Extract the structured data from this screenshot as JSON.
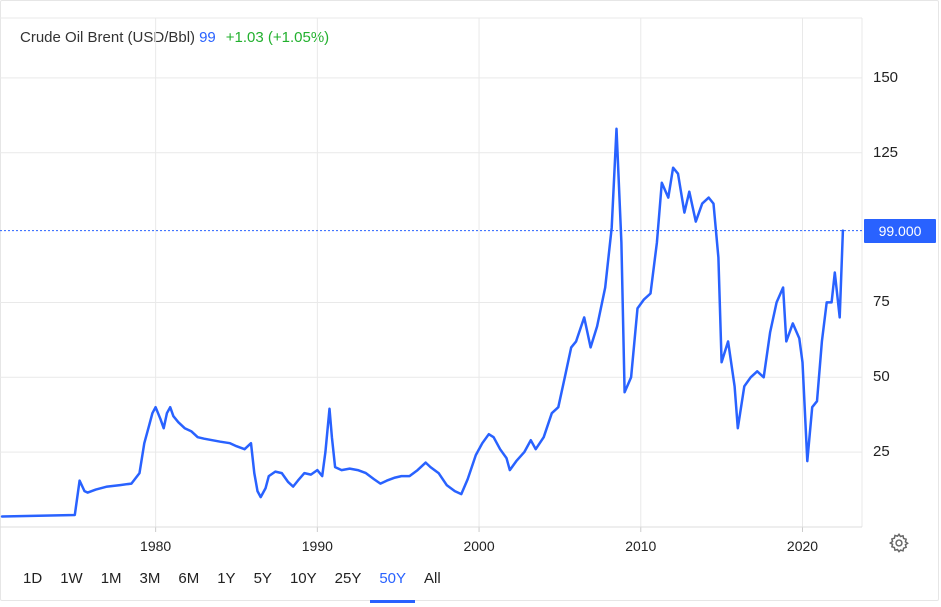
{
  "header": {
    "instrument": "Crude Oil Brent (USD/Bbl)",
    "price": "99",
    "change": "+1.03 (+1.05%)"
  },
  "current_value_label": "99.000",
  "colors": {
    "line": "#2962ff",
    "positive": "#22b02e",
    "grid": "#e9e9e9",
    "text": "#222222"
  },
  "icons": {
    "settings": "gear-icon"
  },
  "ranges": [
    {
      "label": "1D"
    },
    {
      "label": "1W"
    },
    {
      "label": "1M"
    },
    {
      "label": "3M"
    },
    {
      "label": "6M"
    },
    {
      "label": "1Y"
    },
    {
      "label": "5Y"
    },
    {
      "label": "10Y"
    },
    {
      "label": "25Y"
    },
    {
      "label": "50Y"
    },
    {
      "label": "All"
    }
  ],
  "active_range": "50Y",
  "chart_data": {
    "type": "line",
    "title": "Crude Oil Brent (USD/Bbl)",
    "xlabel": "",
    "ylabel": "",
    "x_ticks": [
      "1980",
      "1990",
      "2000",
      "2010",
      "2020"
    ],
    "y_ticks": [
      25,
      50,
      75,
      125,
      150
    ],
    "ylim": [
      0,
      170
    ],
    "xlim": [
      1970.5,
      2023.0
    ],
    "grid": true,
    "legend": "none",
    "current_value": 99.0,
    "series": [
      {
        "name": "",
        "x": [
          1970.5,
          1975.0,
          1975.3,
          1975.6,
          1975.8,
          1976.3,
          1977.0,
          1977.8,
          1978.5,
          1979.0,
          1979.3,
          1979.6,
          1979.8,
          1980.0,
          1980.3,
          1980.5,
          1980.7,
          1980.9,
          1981.1,
          1981.4,
          1981.8,
          1982.2,
          1982.6,
          1983.0,
          1983.5,
          1984.0,
          1984.6,
          1985.0,
          1985.5,
          1985.9,
          1986.1,
          1986.3,
          1986.5,
          1986.8,
          1987.0,
          1987.4,
          1987.8,
          1988.2,
          1988.5,
          1988.8,
          1989.2,
          1989.6,
          1990.0,
          1990.3,
          1990.5,
          1990.75,
          1990.9,
          1991.1,
          1991.5,
          1992.0,
          1992.5,
          1993.0,
          1993.5,
          1993.9,
          1994.3,
          1994.8,
          1995.2,
          1995.7,
          1996.2,
          1996.7,
          1997.0,
          1997.5,
          1998.0,
          1998.5,
          1998.9,
          1999.3,
          1999.8,
          2000.2,
          2000.6,
          2000.9,
          2001.3,
          2001.7,
          2001.9,
          2002.3,
          2002.8,
          2003.2,
          2003.5,
          2004.0,
          2004.5,
          2004.9,
          2005.3,
          2005.7,
          2006.0,
          2006.5,
          2006.9,
          2007.3,
          2007.8,
          2008.2,
          2008.5,
          2008.8,
          2009.0,
          2009.4,
          2009.8,
          2010.2,
          2010.6,
          2011.0,
          2011.3,
          2011.7,
          2012.0,
          2012.3,
          2012.7,
          2013.0,
          2013.4,
          2013.8,
          2014.2,
          2014.5,
          2014.8,
          2015.0,
          2015.4,
          2015.8,
          2016.0,
          2016.4,
          2016.8,
          2017.2,
          2017.6,
          2018.0,
          2018.4,
          2018.8,
          2019.0,
          2019.4,
          2019.8,
          2020.0,
          2020.3,
          2020.6,
          2020.9,
          2021.2,
          2021.5,
          2021.8,
          2022.0,
          2022.3,
          2022.5
        ],
        "values": [
          3.5,
          4.0,
          15.5,
          12.0,
          11.5,
          12.5,
          13.5,
          14.0,
          14.5,
          18.0,
          28.0,
          34.0,
          38.0,
          40.0,
          36.0,
          33.0,
          38.0,
          40.0,
          37.0,
          35.0,
          33.0,
          32.0,
          30.0,
          29.5,
          29.0,
          28.5,
          28.0,
          27.0,
          26.0,
          28.0,
          18.0,
          12.0,
          10.0,
          13.0,
          17.0,
          18.5,
          18.0,
          15.0,
          13.5,
          15.5,
          18.0,
          17.5,
          19.0,
          17.0,
          25.0,
          39.5,
          30.0,
          20.0,
          19.0,
          19.5,
          19.0,
          18.0,
          16.0,
          14.5,
          15.5,
          16.5,
          17.0,
          17.0,
          19.0,
          21.5,
          20.0,
          18.0,
          14.0,
          12.0,
          11.0,
          16.0,
          24.0,
          28.0,
          31.0,
          30.0,
          26.0,
          23.0,
          19.0,
          22.0,
          25.0,
          29.0,
          26.0,
          30.0,
          38.0,
          40.0,
          50.0,
          60.0,
          62.0,
          70.0,
          60.0,
          67.0,
          80.0,
          100.0,
          133.0,
          95.0,
          45.0,
          50.0,
          73.0,
          76.0,
          78.0,
          95.0,
          115.0,
          110.0,
          120.0,
          118.0,
          105.0,
          112.0,
          102.0,
          108.0,
          110.0,
          108.0,
          90.0,
          55.0,
          62.0,
          47.0,
          33.0,
          47.0,
          50.0,
          52.0,
          50.0,
          65.0,
          75.0,
          80.0,
          62.0,
          68.0,
          63.0,
          55.0,
          22.0,
          40.0,
          42.0,
          62.0,
          75.0,
          75.0,
          85.0,
          70.0,
          99.0
        ]
      }
    ]
  }
}
